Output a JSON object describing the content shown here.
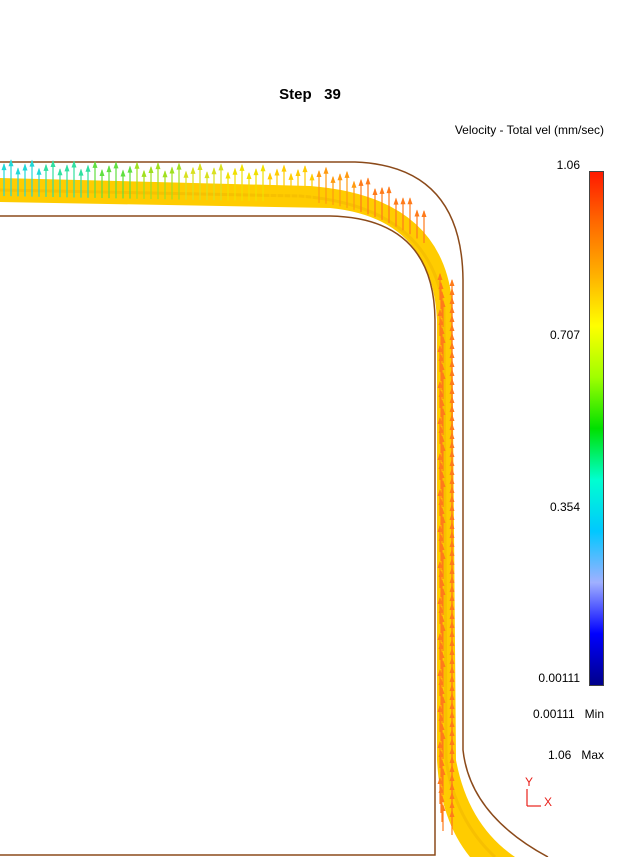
{
  "header": {
    "step_label": "Step",
    "step_number": "39"
  },
  "legend": {
    "title": "Velocity - Total vel (mm/sec)",
    "ticks": [
      "1.06",
      "0.707",
      "0.354",
      "0.00111"
    ],
    "colorbar_stops": [
      "#ff1a00",
      "#ff6a00",
      "#ffb000",
      "#ffff00",
      "#a0ff00",
      "#00e000",
      "#00ffd0",
      "#00c8ff",
      "#a0b0ff",
      "#0000ff",
      "#00008a"
    ],
    "min_value": "0.00111",
    "min_label": "Min",
    "max_value": "1.06",
    "max_label": "Max"
  },
  "axes": {
    "y_label": "Y",
    "x_label": "X",
    "color": "#e8201a"
  },
  "scene": {
    "outline_color": "#8b4a1a",
    "band_color": "#ffcc00",
    "arrow_color": "#ff7a1a"
  }
}
